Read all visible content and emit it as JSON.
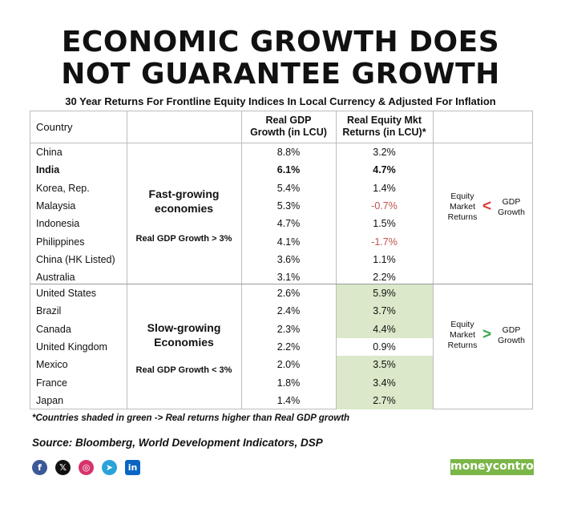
{
  "title_line1": "ECONOMIC GROWTH DOES",
  "title_line2": "NOT GUARANTEE GROWTH",
  "subtitle": "30 Year Returns For Frontline Equity Indices In Local Currency & Adjusted For Inflation",
  "headers": {
    "country": "Country",
    "gdp_line1": "Real GDP",
    "gdp_line2": "Growth (in LCU)",
    "eq_line1": "Real Equity Mkt",
    "eq_line2": "Returns (in LCU)*"
  },
  "groups": [
    {
      "name_line1": "Fast-growing",
      "name_line2": "economies",
      "criterion": "Real GDP Growth > 3%",
      "compare_left_1": "Equity",
      "compare_left_2": "Market",
      "compare_left_3": "Returns",
      "compare_symbol": "<",
      "compare_right_1": "GDP",
      "compare_right_2": "Growth",
      "rows": [
        {
          "country": "China",
          "gdp": "8.8%",
          "equity": "3.2%",
          "bold": false,
          "negative": false,
          "shaded": false
        },
        {
          "country": "India",
          "gdp": "6.1%",
          "equity": "4.7%",
          "bold": true,
          "negative": false,
          "shaded": false
        },
        {
          "country": "Korea, Rep.",
          "gdp": "5.4%",
          "equity": "1.4%",
          "bold": false,
          "negative": false,
          "shaded": false
        },
        {
          "country": "Malaysia",
          "gdp": "5.3%",
          "equity": "-0.7%",
          "bold": false,
          "negative": true,
          "shaded": false
        },
        {
          "country": "Indonesia",
          "gdp": "4.7%",
          "equity": "1.5%",
          "bold": false,
          "negative": false,
          "shaded": false
        },
        {
          "country": "Philippines",
          "gdp": "4.1%",
          "equity": "-1.7%",
          "bold": false,
          "negative": true,
          "shaded": false
        },
        {
          "country": "China (HK Listed)",
          "gdp": "3.6%",
          "equity": "1.1%",
          "bold": false,
          "negative": false,
          "shaded": false
        },
        {
          "country": "Australia",
          "gdp": "3.1%",
          "equity": "2.2%",
          "bold": false,
          "negative": false,
          "shaded": false
        }
      ]
    },
    {
      "name_line1": "Slow-growing",
      "name_line2": "Economies",
      "criterion": "Real GDP Growth < 3%",
      "compare_left_1": "Equity",
      "compare_left_2": "Market",
      "compare_left_3": "Returns",
      "compare_symbol": ">",
      "compare_right_1": "GDP",
      "compare_right_2": "Growth",
      "rows": [
        {
          "country": "United States",
          "gdp": "2.6%",
          "equity": "5.9%",
          "bold": false,
          "negative": false,
          "shaded": true
        },
        {
          "country": "Brazil",
          "gdp": "2.4%",
          "equity": "3.7%",
          "bold": false,
          "negative": false,
          "shaded": true
        },
        {
          "country": "Canada",
          "gdp": "2.3%",
          "equity": "4.4%",
          "bold": false,
          "negative": false,
          "shaded": true
        },
        {
          "country": "United Kingdom",
          "gdp": "2.2%",
          "equity": "0.9%",
          "bold": false,
          "negative": false,
          "shaded": false
        },
        {
          "country": "Mexico",
          "gdp": "2.0%",
          "equity": "3.5%",
          "bold": false,
          "negative": false,
          "shaded": true
        },
        {
          "country": "France",
          "gdp": "1.8%",
          "equity": "3.4%",
          "bold": false,
          "negative": false,
          "shaded": true
        },
        {
          "country": "Japan",
          "gdp": "1.4%",
          "equity": "2.7%",
          "bold": false,
          "negative": false,
          "shaded": true
        }
      ]
    }
  ],
  "footnote": "*Countries shaded in green -> Real returns higher than Real GDP growth",
  "source": "Source: Bloomberg, World Development Indicators, DSP",
  "brand": "moneycontrol",
  "colors": {
    "shade_green": "#dbe8c9",
    "negative_red": "#c0504d",
    "compare_less": "#d93c3c",
    "compare_greater": "#3aa64a",
    "brand_green": "#7ab648"
  },
  "social": [
    {
      "icon": "facebook-icon",
      "glyph": "f",
      "color": "#3b5998"
    },
    {
      "icon": "x-icon",
      "glyph": "𝕏",
      "color": "#111111"
    },
    {
      "icon": "instagram-icon",
      "glyph": "◎",
      "color": "#d6336c"
    },
    {
      "icon": "telegram-icon",
      "glyph": "➤",
      "color": "#2aa3d8"
    },
    {
      "icon": "linkedin-icon",
      "glyph": "in",
      "color": "#0a66c2"
    }
  ]
}
